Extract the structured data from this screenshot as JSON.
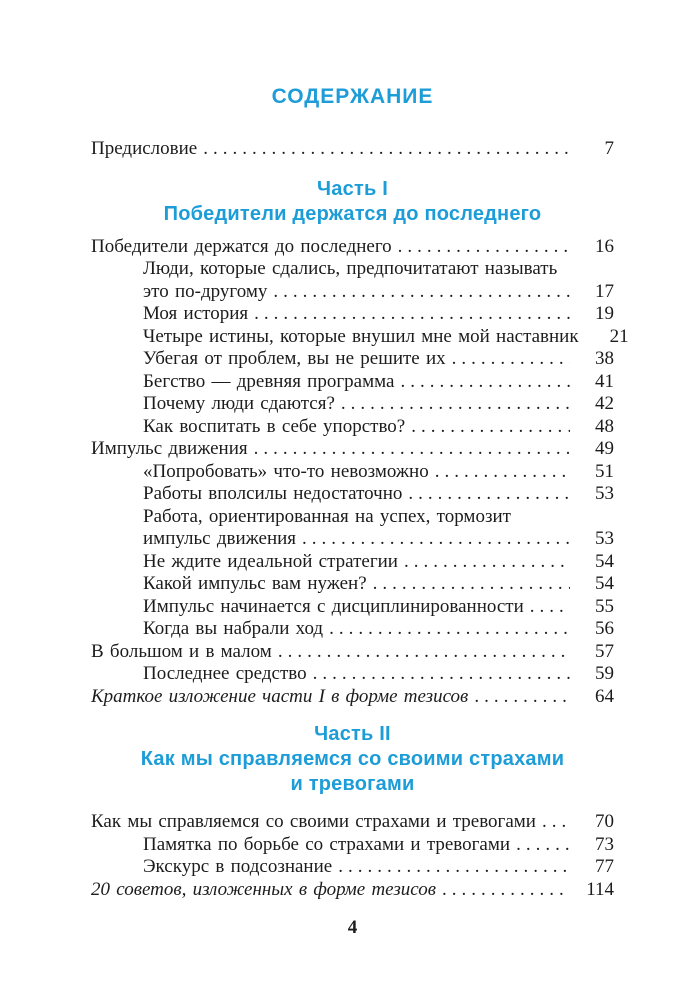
{
  "page": {
    "title": "СОДЕРЖАНИЕ",
    "footer_page_number": "4",
    "accent_color": "#1d9dd8",
    "text_color": "#1c1c1c"
  },
  "toc": {
    "sections": [
      {
        "heading": null,
        "items": [
          {
            "lines": [
              "Предисловие"
            ],
            "page": "7",
            "indent": 0,
            "italic": false
          }
        ]
      },
      {
        "heading": [
          "Часть I",
          "Победители держатся до последнего"
        ],
        "items": [
          {
            "lines": [
              "Победители держатся до последнего"
            ],
            "page": "16",
            "indent": 0,
            "italic": false
          },
          {
            "lines": [
              "Люди, которые сдались, предпочитатают называть",
              "это по-другому"
            ],
            "page": "17",
            "indent": 1,
            "italic": false
          },
          {
            "lines": [
              "Моя история"
            ],
            "page": "19",
            "indent": 1,
            "italic": false
          },
          {
            "lines": [
              "Четыре истины, которые внушил мне мой наставник"
            ],
            "page": "21",
            "indent": 1,
            "italic": false
          },
          {
            "lines": [
              "Убегая от проблем, вы не решите их"
            ],
            "page": "38",
            "indent": 1,
            "italic": false
          },
          {
            "lines": [
              "Бегство — древняя программа"
            ],
            "page": "41",
            "indent": 1,
            "italic": false
          },
          {
            "lines": [
              "Почему люди сдаются?"
            ],
            "page": "42",
            "indent": 1,
            "italic": false
          },
          {
            "lines": [
              "Как воспитать в себе упорство?"
            ],
            "page": "48",
            "indent": 1,
            "italic": false
          },
          {
            "lines": [
              "Импульс движения"
            ],
            "page": "49",
            "indent": 0,
            "italic": false
          },
          {
            "lines": [
              "«Попробовать» что-то невозможно"
            ],
            "page": "51",
            "indent": 1,
            "italic": false
          },
          {
            "lines": [
              "Работы вполсилы недостаточно"
            ],
            "page": "53",
            "indent": 1,
            "italic": false
          },
          {
            "lines": [
              "Работа, ориентированная на успех, тормозит",
              "импульс движения"
            ],
            "page": "53",
            "indent": 1,
            "italic": false
          },
          {
            "lines": [
              "Не ждите идеальной стратегии"
            ],
            "page": "54",
            "indent": 1,
            "italic": false
          },
          {
            "lines": [
              "Какой импульс вам нужен?"
            ],
            "page": "54",
            "indent": 1,
            "italic": false
          },
          {
            "lines": [
              "Импульс начинается с дисциплинированности"
            ],
            "page": "55",
            "indent": 1,
            "italic": false
          },
          {
            "lines": [
              "Когда вы набрали ход"
            ],
            "page": "56",
            "indent": 1,
            "italic": false
          },
          {
            "lines": [
              "В большом и в малом"
            ],
            "page": "57",
            "indent": 0,
            "italic": false
          },
          {
            "lines": [
              "Последнее средство"
            ],
            "page": "59",
            "indent": 1,
            "italic": false
          },
          {
            "lines": [
              "Краткое изложение части I в форме тезисов"
            ],
            "page": "64",
            "indent": 0,
            "italic": true
          }
        ]
      },
      {
        "heading": [
          "Часть II",
          "Как мы справляемся со своими страхами",
          "и тревогами"
        ],
        "items": [
          {
            "lines": [
              "Как мы справляемся со своими страхами и тревогами"
            ],
            "page": "70",
            "indent": 0,
            "italic": false
          },
          {
            "lines": [
              "Памятка по борьбе со страхами и тревогами"
            ],
            "page": "73",
            "indent": 1,
            "italic": false
          },
          {
            "lines": [
              "Экскурс в подсознание"
            ],
            "page": "77",
            "indent": 1,
            "italic": false
          },
          {
            "lines": [
              "20 советов, изложенных в форме тезисов"
            ],
            "page": "114",
            "indent": 0,
            "italic": true
          }
        ]
      }
    ]
  }
}
